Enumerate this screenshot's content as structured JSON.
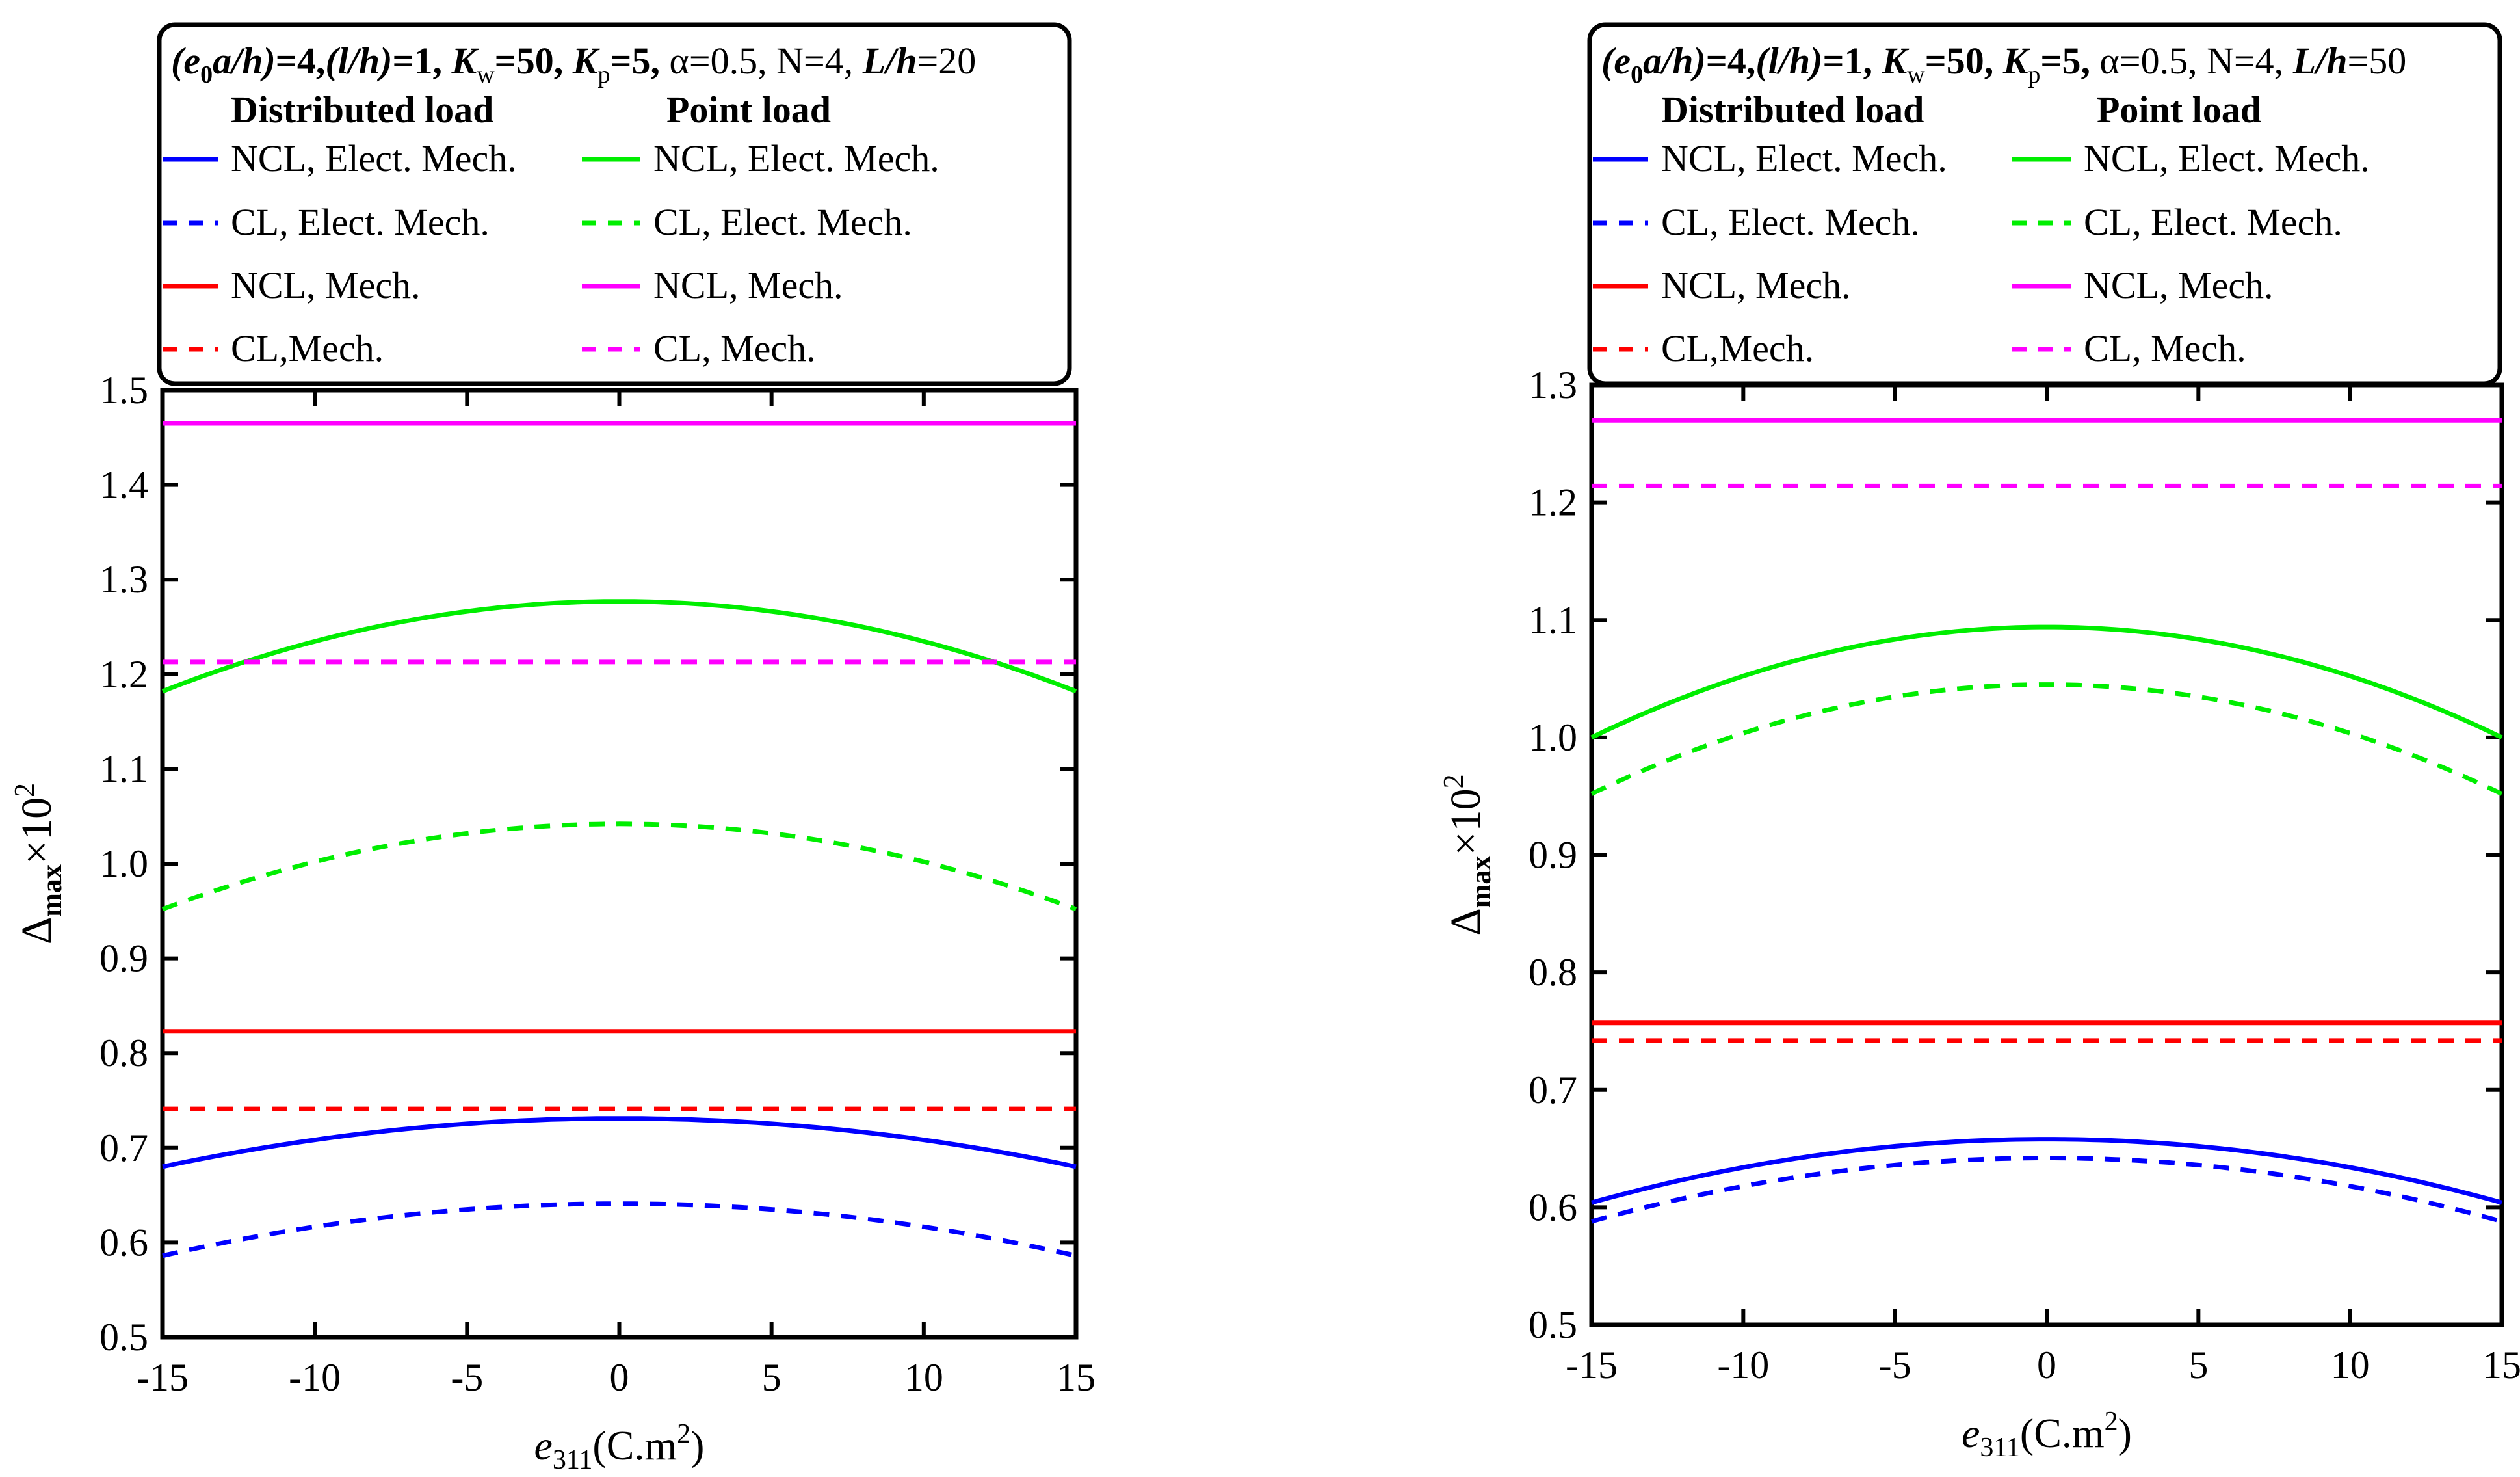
{
  "chart_data": [
    {
      "type": "line",
      "params": {
        "e0a_h": "4",
        "l_h": "1",
        "kw": "50",
        "kp": "5",
        "alpha": "α=0.5,",
        "n": "N=4,",
        "Lh": "20"
      },
      "legend": {
        "header_distributed": "Distributed load",
        "header_point": "Point load",
        "distributed_labels": [
          "NCL, Elect. Mech.",
          "CL, Elect. Mech.",
          "NCL, Mech.",
          "CL,Mech."
        ],
        "point_labels": [
          "NCL, Elect. Mech.",
          "CL, Elect. Mech.",
          "NCL, Mech.",
          "CL, Mech."
        ]
      },
      "xlabel": {
        "sym": "e",
        "sub": "311",
        "unit": "(C.m",
        "sup": "2",
        "close": ")"
      },
      "ylabel": {
        "sym": "Δ",
        "sub": "max",
        "mult": "×10",
        "sup": "2"
      },
      "xlim": [
        -15,
        15
      ],
      "ylim": [
        0.5,
        1.5
      ],
      "xticks": [
        "-15",
        "-10",
        "-5",
        "0",
        "5",
        "10",
        "15"
      ],
      "yticks": [
        "0.5",
        "0.6",
        "0.7",
        "0.8",
        "0.9",
        "1.0",
        "1.1",
        "1.2",
        "1.3",
        "1.4",
        "1.5"
      ],
      "series": [
        {
          "name": "Distributed NCL, Elect. Mech.",
          "color": "#0000ff",
          "dash": false,
          "x": [
            -15,
            -10,
            -5,
            0,
            5,
            10,
            15
          ],
          "y": [
            0.68,
            0.708,
            0.725,
            0.731,
            0.725,
            0.708,
            0.68
          ]
        },
        {
          "name": "Distributed CL, Elect. Mech.",
          "color": "#0000ff",
          "dash": true,
          "x": [
            -15,
            -10,
            -5,
            0,
            5,
            10,
            15
          ],
          "y": [
            0.586,
            0.614,
            0.632,
            0.641,
            0.632,
            0.614,
            0.586
          ]
        },
        {
          "name": "Distributed NCL, Mech.",
          "color": "#ff0000",
          "dash": false,
          "x": [
            -15,
            15
          ],
          "y": [
            0.823,
            0.823
          ]
        },
        {
          "name": "Distributed CL, Mech.",
          "color": "#ff0000",
          "dash": true,
          "x": [
            -15,
            15
          ],
          "y": [
            0.741,
            0.741
          ]
        },
        {
          "name": "Point NCL, Elect. Mech.",
          "color": "#00ee00",
          "dash": false,
          "x": [
            -15,
            -10,
            -5,
            0,
            5,
            10,
            15
          ],
          "y": [
            1.182,
            1.235,
            1.266,
            1.277,
            1.266,
            1.235,
            1.182
          ]
        },
        {
          "name": "Point CL, Elect. Mech.",
          "color": "#00ee00",
          "dash": true,
          "x": [
            -15,
            -10,
            -5,
            0,
            5,
            10,
            15
          ],
          "y": [
            0.952,
            0.999,
            1.031,
            1.042,
            1.031,
            0.999,
            0.952
          ]
        },
        {
          "name": "Point NCL, Mech.",
          "color": "#ff00ff",
          "dash": false,
          "x": [
            -15,
            15
          ],
          "y": [
            1.465,
            1.465
          ]
        },
        {
          "name": "Point CL, Mech.",
          "color": "#ff00ff",
          "dash": true,
          "x": [
            -15,
            15
          ],
          "y": [
            1.213,
            1.213
          ]
        }
      ]
    },
    {
      "type": "line",
      "params": {
        "e0a_h": "4",
        "l_h": "1",
        "kw": "50",
        "kp": "5",
        "alpha": "α=0.5,",
        "n": "N=4,",
        "Lh": "50"
      },
      "legend": {
        "header_distributed": "Distributed load",
        "header_point": "Point load",
        "distributed_labels": [
          "NCL, Elect. Mech.",
          "CL, Elect. Mech.",
          "NCL, Mech.",
          "CL,Mech."
        ],
        "point_labels": [
          "NCL, Elect. Mech.",
          "CL, Elect. Mech.",
          "NCL, Mech.",
          "CL, Mech."
        ]
      },
      "xlabel": {
        "sym": "e",
        "sub": "311",
        "unit": "(C.m",
        "sup": "2",
        "close": ")"
      },
      "ylabel": {
        "sym": "Δ",
        "sub": "max",
        "mult": "×10",
        "sup": "2"
      },
      "xlim": [
        -15,
        15
      ],
      "ylim": [
        0.5,
        1.3
      ],
      "xticks": [
        "-15",
        "-10",
        "-5",
        "0",
        "5",
        "10",
        "15"
      ],
      "yticks": [
        "0.5",
        "0.6",
        "0.7",
        "0.8",
        "0.9",
        "1.0",
        "1.1",
        "1.2",
        "1.3"
      ],
      "series": [
        {
          "name": "Distributed NCL, Elect. Mech.",
          "color": "#0000ff",
          "dash": false,
          "x": [
            -15,
            -10,
            -5,
            0,
            5,
            10,
            15
          ],
          "y": [
            0.604,
            0.635,
            0.652,
            0.658,
            0.652,
            0.635,
            0.604
          ]
        },
        {
          "name": "Distributed CL, Elect. Mech.",
          "color": "#0000ff",
          "dash": true,
          "x": [
            -15,
            -10,
            -5,
            0,
            5,
            10,
            15
          ],
          "y": [
            0.588,
            0.619,
            0.637,
            0.642,
            0.637,
            0.619,
            0.588
          ]
        },
        {
          "name": "Distributed NCL, Mech.",
          "color": "#ff0000",
          "dash": false,
          "x": [
            -15,
            15
          ],
          "y": [
            0.757,
            0.757
          ]
        },
        {
          "name": "Distributed CL, Mech.",
          "color": "#ff0000",
          "dash": true,
          "x": [
            -15,
            15
          ],
          "y": [
            0.742,
            0.742
          ]
        },
        {
          "name": "Point NCL, Elect. Mech.",
          "color": "#00ee00",
          "dash": false,
          "x": [
            -15,
            -10,
            -5,
            0,
            5,
            10,
            15
          ],
          "y": [
            1.0,
            1.055,
            1.085,
            1.094,
            1.085,
            1.055,
            1.0
          ]
        },
        {
          "name": "Point CL, Elect. Mech.",
          "color": "#00ee00",
          "dash": true,
          "x": [
            -15,
            -10,
            -5,
            0,
            5,
            10,
            15
          ],
          "y": [
            0.952,
            1.005,
            1.035,
            1.045,
            1.035,
            1.005,
            0.952
          ]
        },
        {
          "name": "Point NCL, Mech.",
          "color": "#ff00ff",
          "dash": false,
          "x": [
            -15,
            15
          ],
          "y": [
            1.27,
            1.27
          ]
        },
        {
          "name": "Point CL, Mech.",
          "color": "#ff00ff",
          "dash": true,
          "x": [
            -15,
            15
          ],
          "y": [
            1.214,
            1.214
          ]
        }
      ]
    }
  ]
}
